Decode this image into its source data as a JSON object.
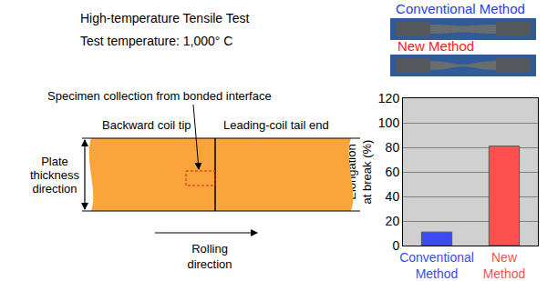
{
  "header": {
    "title": "High-temperature Tensile Test",
    "subtitle": "Test temperature: 1,000° C"
  },
  "diagram": {
    "callout": "Specimen collection from bonded interface",
    "left_label": "Backward coil tip",
    "right_label": "Leading-coil tail end",
    "vertical_label": "Plate thickness direction",
    "horizontal_label": "Rolling direction"
  },
  "photos": [
    {
      "label": "Conventional Method",
      "color": "#2a3fe0"
    },
    {
      "label": "New Method",
      "color": "#ff1a1a"
    }
  ],
  "chart_data": {
    "type": "bar",
    "categories": [
      "Conventional Method",
      "New Method"
    ],
    "values": [
      11,
      81
    ],
    "colors": [
      "#3b4cf2",
      "#ff5050"
    ],
    "y_label": "Elongation at break (%)",
    "ylim": [
      0,
      120
    ],
    "yticks": [
      0,
      20,
      40,
      60,
      80,
      100,
      120
    ],
    "grid": true
  }
}
